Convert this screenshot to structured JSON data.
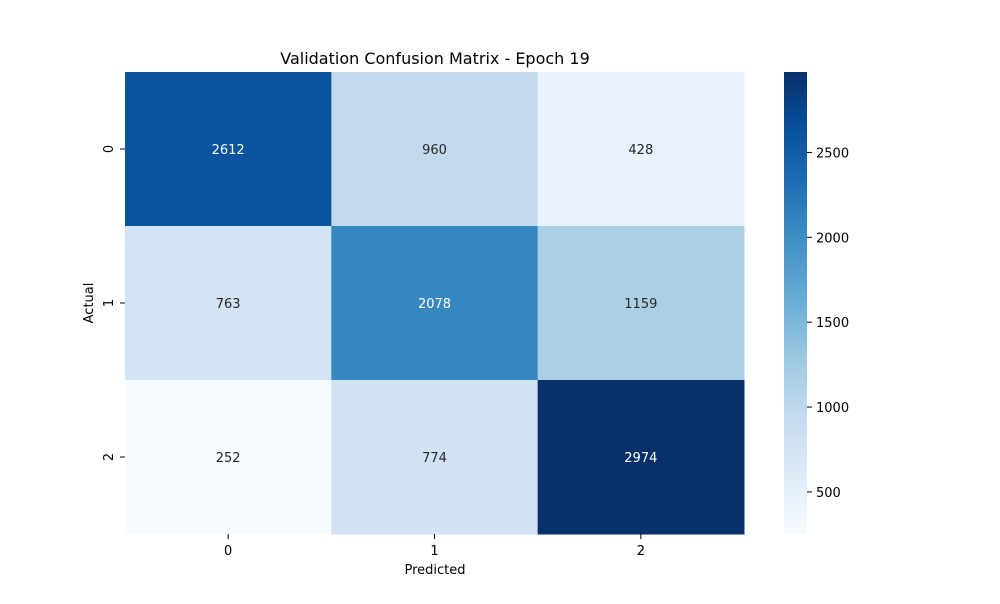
{
  "chart_data": {
    "type": "heatmap",
    "title": "Validation Confusion Matrix - Epoch 19",
    "xlabel": "Predicted",
    "ylabel": "Actual",
    "x_categories": [
      "0",
      "1",
      "2"
    ],
    "y_categories": [
      "0",
      "1",
      "2"
    ],
    "values": [
      [
        2612,
        960,
        428
      ],
      [
        763,
        2078,
        1159
      ],
      [
        252,
        774,
        2974
      ]
    ],
    "colormap": "Blues",
    "colorbar": {
      "range": [
        252,
        2974
      ],
      "ticks": [
        500,
        1000,
        1500,
        2000,
        2500
      ],
      "tick_labels": [
        "500",
        "1000",
        "1500",
        "2000",
        "2500"
      ]
    },
    "annotation_colors": {
      "on_dark": "#ffffff",
      "on_light": "#262626"
    }
  }
}
